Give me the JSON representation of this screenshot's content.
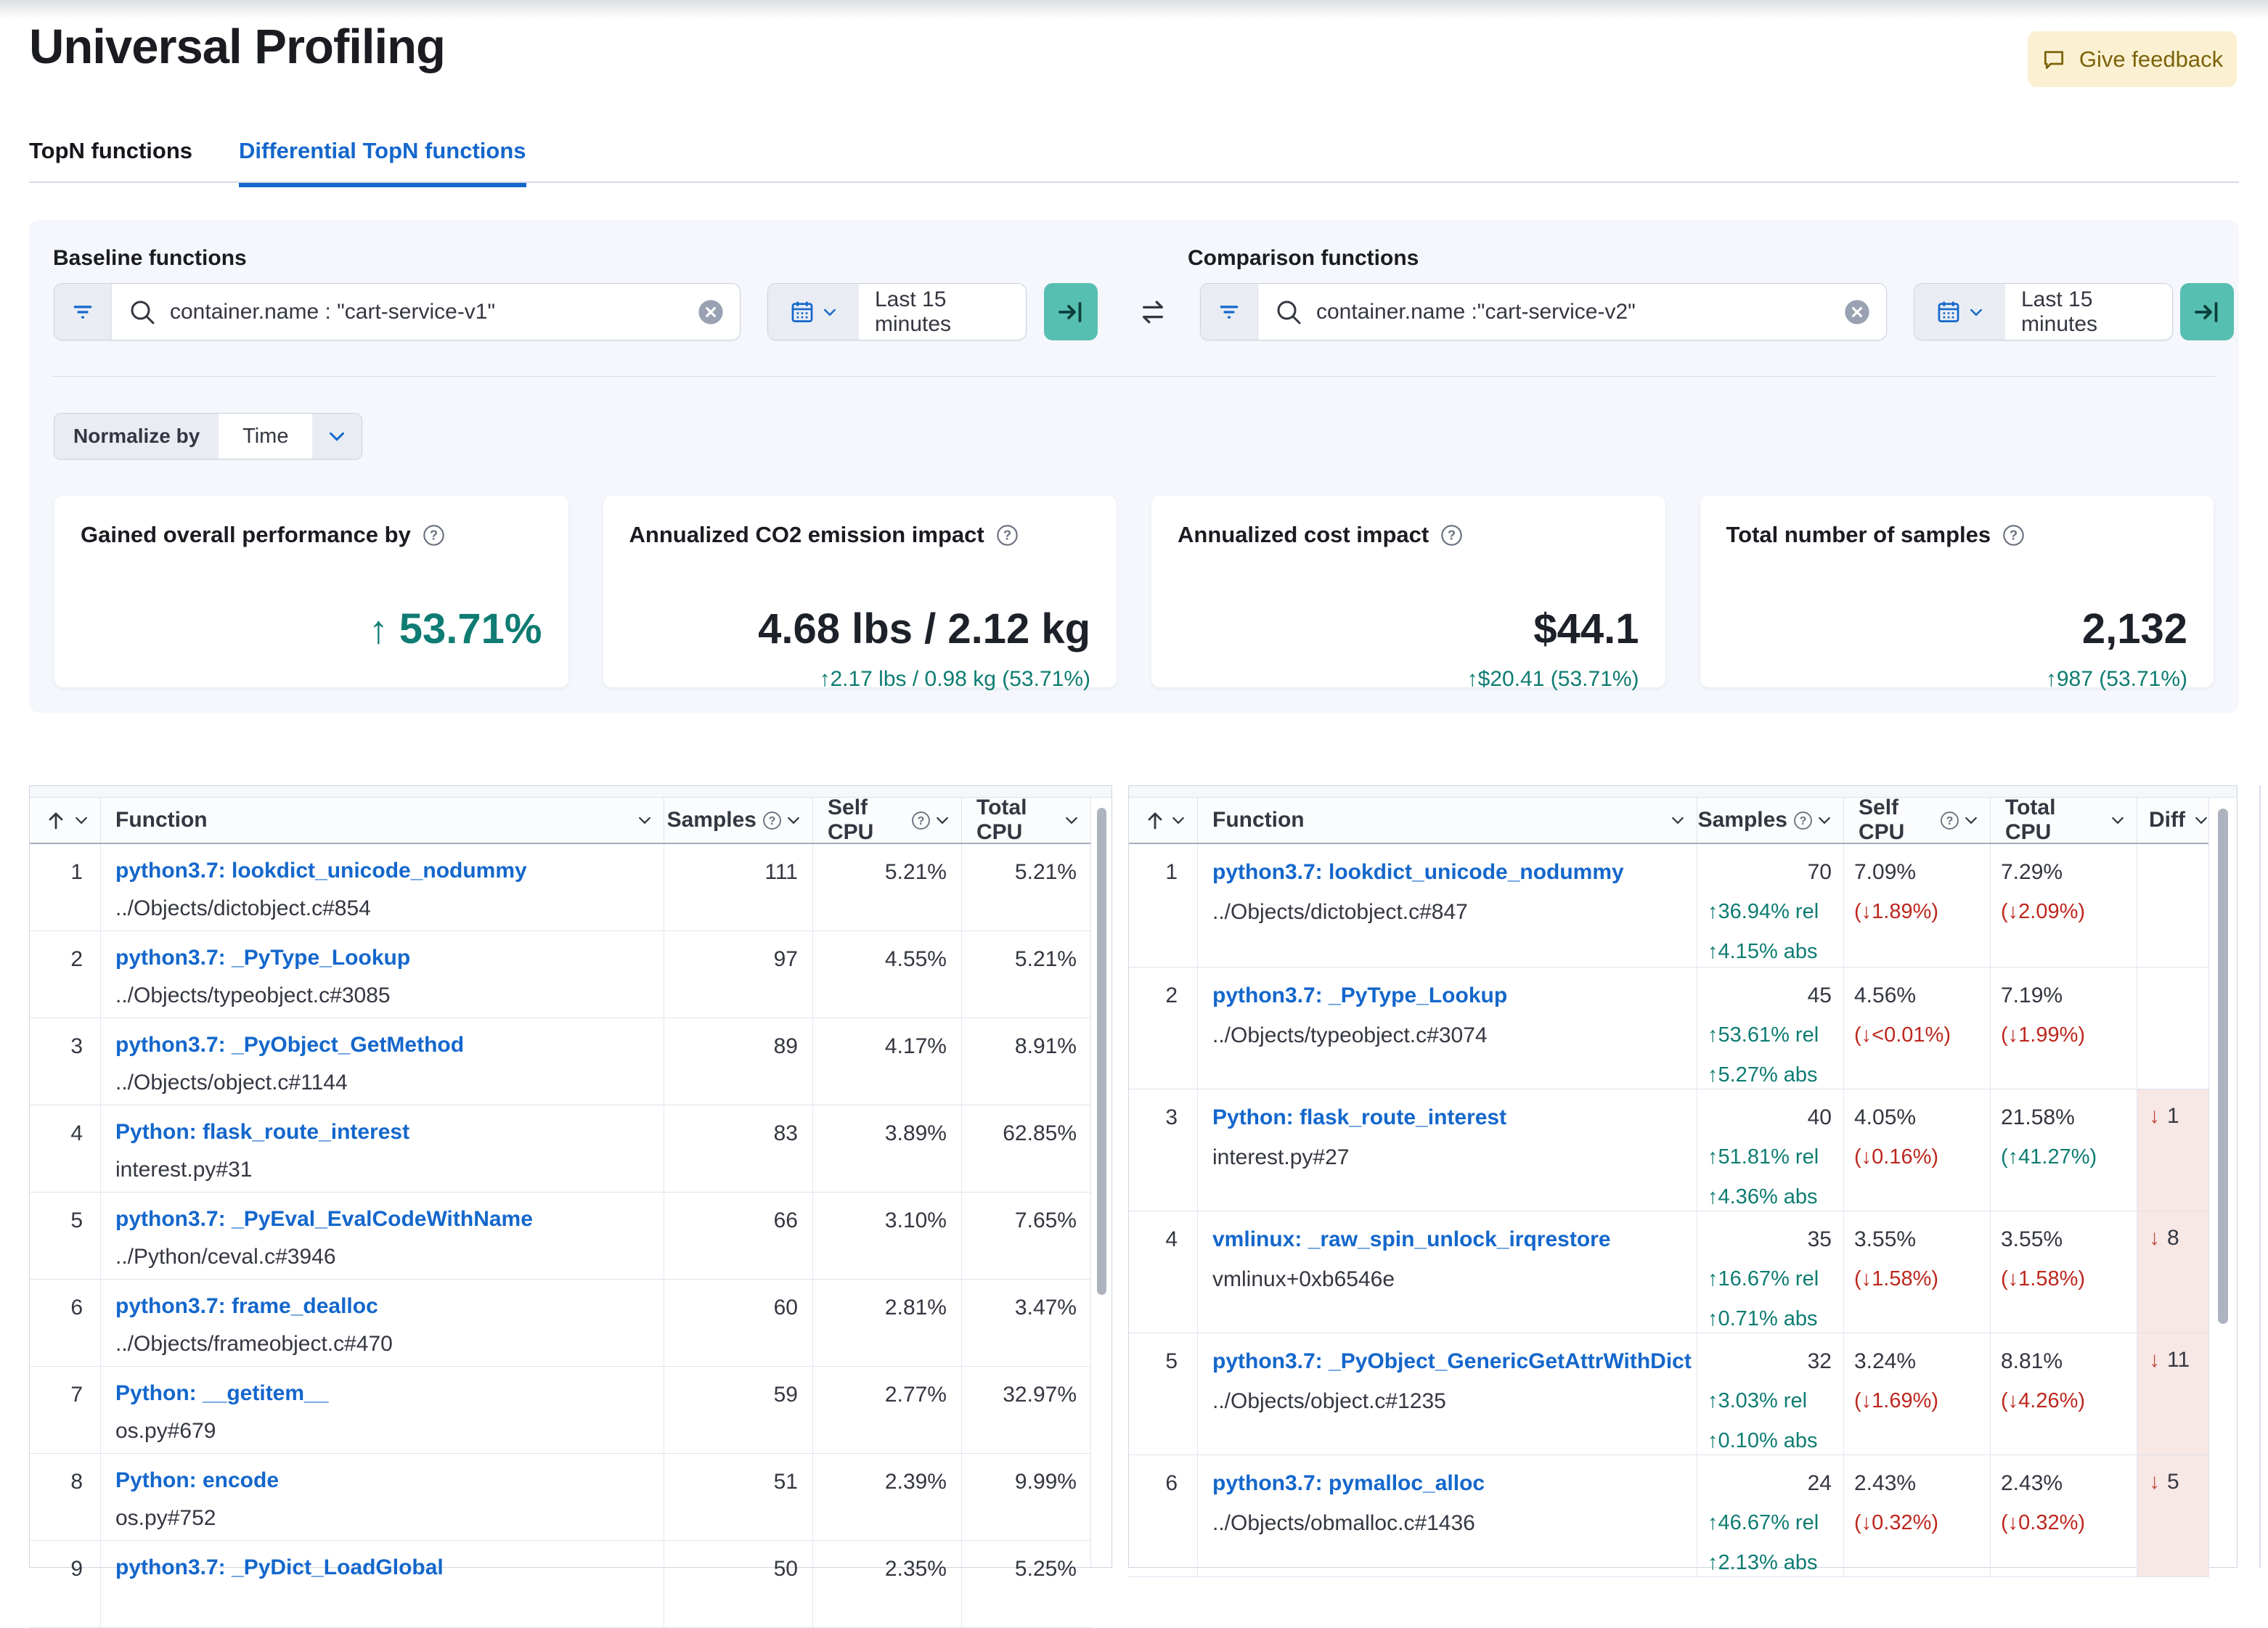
{
  "page": {
    "title": "Universal Profiling"
  },
  "feedback": {
    "label": "Give feedback"
  },
  "tabs": [
    {
      "label": "TopN functions",
      "active": false
    },
    {
      "label": "Differential TopN functions",
      "active": true
    }
  ],
  "baseline": {
    "label": "Baseline functions",
    "query": "container.name : \"cart-service-v1\"",
    "time_range": "Last 15 minutes"
  },
  "comparison": {
    "label": "Comparison functions",
    "query": "container.name :\"cart-service-v2\"",
    "time_range": "Last 15 minutes"
  },
  "normalize": {
    "label": "Normalize by",
    "value": "Time"
  },
  "cards": [
    {
      "title": "Gained overall performance by",
      "value": "53.71%",
      "arrow": "↑",
      "teal": true,
      "sub": ""
    },
    {
      "title": "Annualized CO2 emission impact",
      "value": "4.68 lbs / 2.12 kg",
      "arrow": "",
      "teal": false,
      "sub": "↑2.17 lbs / 0.98 kg (53.71%)"
    },
    {
      "title": "Annualized cost impact",
      "value": "$44.1",
      "arrow": "",
      "teal": false,
      "sub": "↑$20.41 (53.71%)"
    },
    {
      "title": "Total number of samples",
      "value": "2,132",
      "arrow": "",
      "teal": false,
      "sub": "↑987 (53.71%)"
    }
  ],
  "colors": {
    "accent_blue": "#1467cc",
    "teal": "#0e7c72",
    "red": "#bd271e",
    "submit_teal": "#57bfb2",
    "feedback_bg": "#fbf1d2"
  },
  "baseline_table": {
    "headers": {
      "function": "Function",
      "samples": "Samples",
      "self": "Self CPU",
      "total": "Total CPU"
    },
    "rows": [
      {
        "rank": "1",
        "fn": "python3.7: lookdict_unicode_nodummy",
        "src": "../Objects/dictobject.c#854",
        "samples": "111",
        "self": "5.21%",
        "total": "5.21%"
      },
      {
        "rank": "2",
        "fn": "python3.7: _PyType_Lookup",
        "src": "../Objects/typeobject.c#3085",
        "samples": "97",
        "self": "4.55%",
        "total": "5.21%"
      },
      {
        "rank": "3",
        "fn": "python3.7: _PyObject_GetMethod",
        "src": "../Objects/object.c#1144",
        "samples": "89",
        "self": "4.17%",
        "total": "8.91%"
      },
      {
        "rank": "4",
        "fn": "Python: flask_route_interest",
        "src": "interest.py#31",
        "samples": "83",
        "self": "3.89%",
        "total": "62.85%"
      },
      {
        "rank": "5",
        "fn": "python3.7: _PyEval_EvalCodeWithName",
        "src": "../Python/ceval.c#3946",
        "samples": "66",
        "self": "3.10%",
        "total": "7.65%"
      },
      {
        "rank": "6",
        "fn": "python3.7: frame_dealloc",
        "src": "../Objects/frameobject.c#470",
        "samples": "60",
        "self": "2.81%",
        "total": "3.47%"
      },
      {
        "rank": "7",
        "fn": "Python: __getitem__",
        "src": "os.py#679",
        "samples": "59",
        "self": "2.77%",
        "total": "32.97%"
      },
      {
        "rank": "8",
        "fn": "Python: encode",
        "src": "os.py#752",
        "samples": "51",
        "self": "2.39%",
        "total": "9.99%"
      },
      {
        "rank": "9",
        "fn": "python3.7: _PyDict_LoadGlobal",
        "src": "",
        "samples": "50",
        "self": "2.35%",
        "total": "5.25%"
      }
    ]
  },
  "comparison_table": {
    "headers": {
      "function": "Function",
      "samples": "Samples",
      "self": "Self CPU",
      "total": "Total CPU",
      "diff": "Diff"
    },
    "rows": [
      {
        "rank": "1",
        "fn": "python3.7: lookdict_unicode_nodummy",
        "src": "../Objects/dictobject.c#847",
        "samples": "70",
        "rel": "↑36.94% rel",
        "abs": "↑4.15% abs",
        "self": "7.09%",
        "self_diff": "(↓1.89%)",
        "self_diff_up": false,
        "total": "7.29%",
        "total_diff": "(↓2.09%)",
        "total_diff_up": false,
        "diff": ""
      },
      {
        "rank": "2",
        "fn": "python3.7: _PyType_Lookup",
        "src": "../Objects/typeobject.c#3074",
        "samples": "45",
        "rel": "↑53.61% rel",
        "abs": "↑5.27% abs",
        "self": "4.56%",
        "self_diff": "(↓<0.01%)",
        "self_diff_up": false,
        "total": "7.19%",
        "total_diff": "(↓1.99%)",
        "total_diff_up": false,
        "diff": ""
      },
      {
        "rank": "3",
        "fn": "Python: flask_route_interest",
        "src": "interest.py#27",
        "samples": "40",
        "rel": "↑51.81% rel",
        "abs": "↑4.36% abs",
        "self": "4.05%",
        "self_diff": "(↓0.16%)",
        "self_diff_up": false,
        "total": "21.58%",
        "total_diff": "(↑41.27%)",
        "total_diff_up": true,
        "diff": "1"
      },
      {
        "rank": "4",
        "fn": "vmlinux: _raw_spin_unlock_irqrestore",
        "src": "vmlinux+0xb6546e",
        "samples": "35",
        "rel": "↑16.67% rel",
        "abs": "↑0.71% abs",
        "self": "3.55%",
        "self_diff": "(↓1.58%)",
        "self_diff_up": false,
        "total": "3.55%",
        "total_diff": "(↓1.58%)",
        "total_diff_up": false,
        "diff": "8"
      },
      {
        "rank": "5",
        "fn": "python3.7: _PyObject_GenericGetAttrWithDict",
        "src": "../Objects/object.c#1235",
        "samples": "32",
        "rel": "↑3.03% rel",
        "abs": "↑0.10% abs",
        "self": "3.24%",
        "self_diff": "(↓1.69%)",
        "self_diff_up": false,
        "total": "8.81%",
        "total_diff": "(↓4.26%)",
        "total_diff_up": false,
        "diff": "11"
      },
      {
        "rank": "6",
        "fn": "python3.7: pymalloc_alloc",
        "src": "../Objects/obmalloc.c#1436",
        "samples": "24",
        "rel": "↑46.67% rel",
        "abs": "↑2.13% abs",
        "self": "2.43%",
        "self_diff": "(↓0.32%)",
        "self_diff_up": false,
        "total": "2.43%",
        "total_diff": "(↓0.32%)",
        "total_diff_up": false,
        "diff": "5"
      }
    ]
  }
}
